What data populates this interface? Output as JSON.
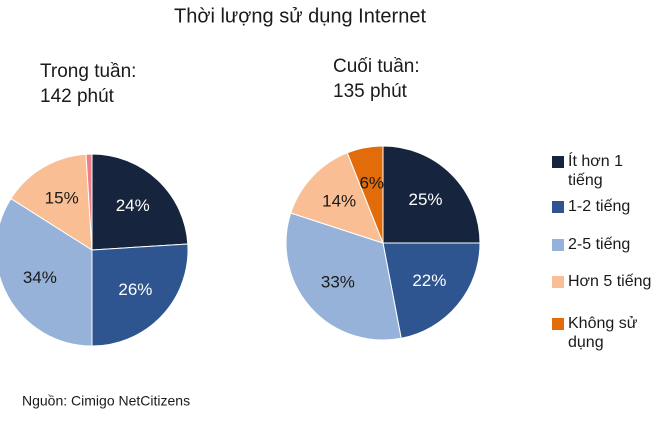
{
  "title": "Thời lượng sử dụng Internet",
  "source": "Nguồn: Cimigo NetCitizens",
  "legend": {
    "categories": [
      "Ít hơn 1 tiếng",
      "1-2 tiếng",
      "2-5 tiếng",
      "Hơn 5 tiếng",
      "Không sử dụng"
    ],
    "colors": [
      "#16243e",
      "#2e5590",
      "#96b2d9",
      "#f9be94",
      "#e36c0a"
    ]
  },
  "chart_data": [
    {
      "type": "pie",
      "title": "Trong tuần:",
      "subtitle": "142 phút",
      "values": [
        24,
        26,
        34,
        15,
        1
      ],
      "value_labels": [
        "24%",
        "26%",
        "34%",
        "15%",
        null
      ],
      "colors": [
        "#16243e",
        "#2e5590",
        "#96b2d9",
        "#f9be94",
        "#f07c84"
      ]
    },
    {
      "type": "pie",
      "title": "Cuối tuần:",
      "subtitle": "135 phút",
      "values": [
        25,
        22,
        33,
        14,
        6
      ],
      "value_labels": [
        "25%",
        "22%",
        "33%",
        "14%",
        "6%"
      ],
      "colors": [
        "#16243e",
        "#2e5590",
        "#96b2d9",
        "#f9be94",
        "#e36c0a"
      ]
    }
  ]
}
